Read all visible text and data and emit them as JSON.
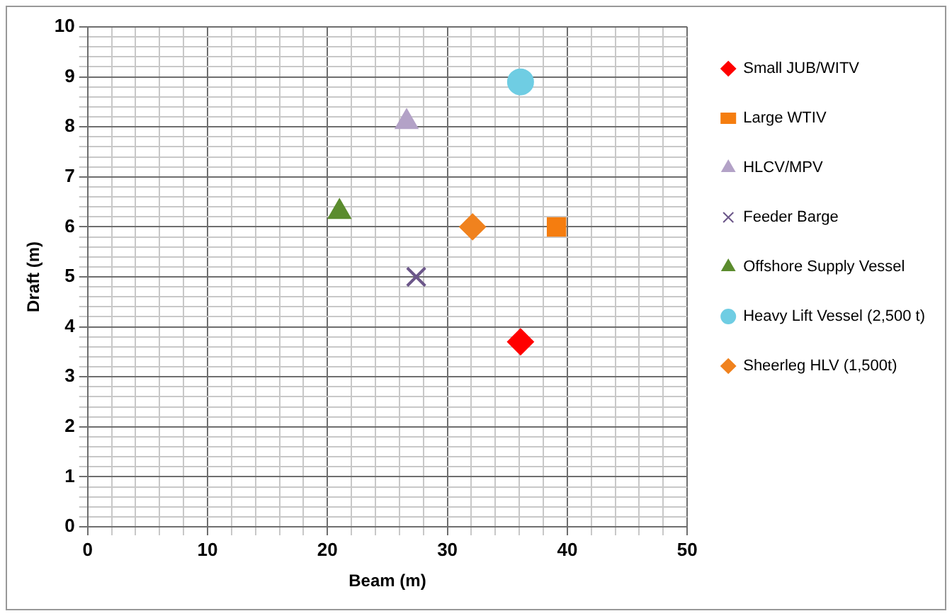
{
  "chart_data": {
    "type": "scatter",
    "xlabel": "Beam (m)",
    "ylabel": "Draft (m)",
    "xlim": [
      0,
      50
    ],
    "ylim": [
      0,
      10
    ],
    "xticks": [
      0,
      {
        "value": 2,
        "label": null
      },
      {
        "value": 4,
        "label": null
      },
      {
        "value": 6,
        "label": null
      },
      {
        "value": 8,
        "label": null
      },
      10,
      {
        "value": 12,
        "label": null
      },
      {
        "value": 14,
        "label": null
      },
      {
        "value": 16,
        "label": null
      },
      {
        "value": 18,
        "label": null
      },
      20,
      {
        "value": 22,
        "label": null
      },
      {
        "value": 24,
        "label": null
      },
      {
        "value": 26,
        "label": null
      },
      {
        "value": 28,
        "label": null
      },
      30,
      {
        "value": 32,
        "label": null
      },
      {
        "value": 34,
        "label": null
      },
      {
        "value": 36,
        "label": null
      },
      {
        "value": 38,
        "label": null
      },
      40,
      {
        "value": 42,
        "label": null
      },
      {
        "value": 44,
        "label": null
      },
      {
        "value": 46,
        "label": null
      },
      {
        "value": 48,
        "label": null
      },
      50
    ],
    "yticks": [
      0,
      {
        "value": 0.2,
        "label": null
      },
      {
        "value": 0.4,
        "label": null
      },
      {
        "value": 0.6,
        "label": null
      },
      {
        "value": 0.8,
        "label": null
      },
      1,
      {
        "value": 1.2,
        "label": null
      },
      {
        "value": 1.4,
        "label": null
      },
      {
        "value": 1.6,
        "label": null
      },
      {
        "value": 1.8,
        "label": null
      },
      2,
      {
        "value": 2.2,
        "label": null
      },
      {
        "value": 2.4,
        "label": null
      },
      {
        "value": 2.6,
        "label": null
      },
      {
        "value": 2.8,
        "label": null
      },
      3,
      {
        "value": 3.2,
        "label": null
      },
      {
        "value": 3.4,
        "label": null
      },
      {
        "value": 3.6,
        "label": null
      },
      {
        "value": 3.8,
        "label": null
      },
      4,
      {
        "value": 4.2,
        "label": null
      },
      {
        "value": 4.4,
        "label": null
      },
      {
        "value": 4.6,
        "label": null
      },
      {
        "value": 4.8,
        "label": null
      },
      5,
      {
        "value": 5.2,
        "label": null
      },
      {
        "value": 5.4,
        "label": null
      },
      {
        "value": 5.6,
        "label": null
      },
      {
        "value": 5.8,
        "label": null
      },
      6,
      {
        "value": 6.2,
        "label": null
      },
      {
        "value": 6.4,
        "label": null
      },
      {
        "value": 6.6,
        "label": null
      },
      {
        "value": 6.8,
        "label": null
      },
      7,
      {
        "value": 7.2,
        "label": null
      },
      {
        "value": 7.4,
        "label": null
      },
      {
        "value": 7.6,
        "label": null
      },
      {
        "value": 7.8,
        "label": null
      },
      8,
      {
        "value": 8.2,
        "label": null
      },
      {
        "value": 8.4,
        "label": null
      },
      {
        "value": 8.6,
        "label": null
      },
      {
        "value": 8.8,
        "label": null
      },
      9,
      {
        "value": 9.2,
        "label": null
      },
      {
        "value": 9.4,
        "label": null
      },
      {
        "value": 9.6,
        "label": null
      },
      {
        "value": 9.8,
        "label": null
      },
      10
    ],
    "grid": true,
    "legend": "right",
    "series": [
      {
        "name": "Small JUB/WITV",
        "color": "#ff0000",
        "marker": "diamond",
        "x": [
          36.1
        ],
        "values": [
          3.7
        ]
      },
      {
        "name": "Large WTIV",
        "color": "#f57d0f",
        "marker": "square",
        "x": [
          39.1
        ],
        "values": [
          6.0
        ]
      },
      {
        "name": "HLCV/MPV",
        "color": "#b3a2c7",
        "marker": "triangle",
        "x": [
          26.6
        ],
        "values": [
          8.1
        ]
      },
      {
        "name": "Feeder Barge",
        "color": "#6b5689",
        "marker": "cross",
        "x": [
          27.4
        ],
        "values": [
          5.0
        ]
      },
      {
        "name": "Offshore Supply Vessel",
        "color": "#5b8c2e",
        "marker": "triangle",
        "x": [
          21.0
        ],
        "values": [
          6.3
        ]
      },
      {
        "name": "Heavy Lift Vessel (2,500 t)",
        "color": "#6fcde3",
        "marker": "circle",
        "x": [
          36.1
        ],
        "values": [
          8.9
        ]
      },
      {
        "name": "Sheerleg HLV (1,500t)",
        "color": "#f0821e",
        "marker": "diamond",
        "x": [
          32.1
        ],
        "values": [
          6.0
        ]
      }
    ]
  }
}
